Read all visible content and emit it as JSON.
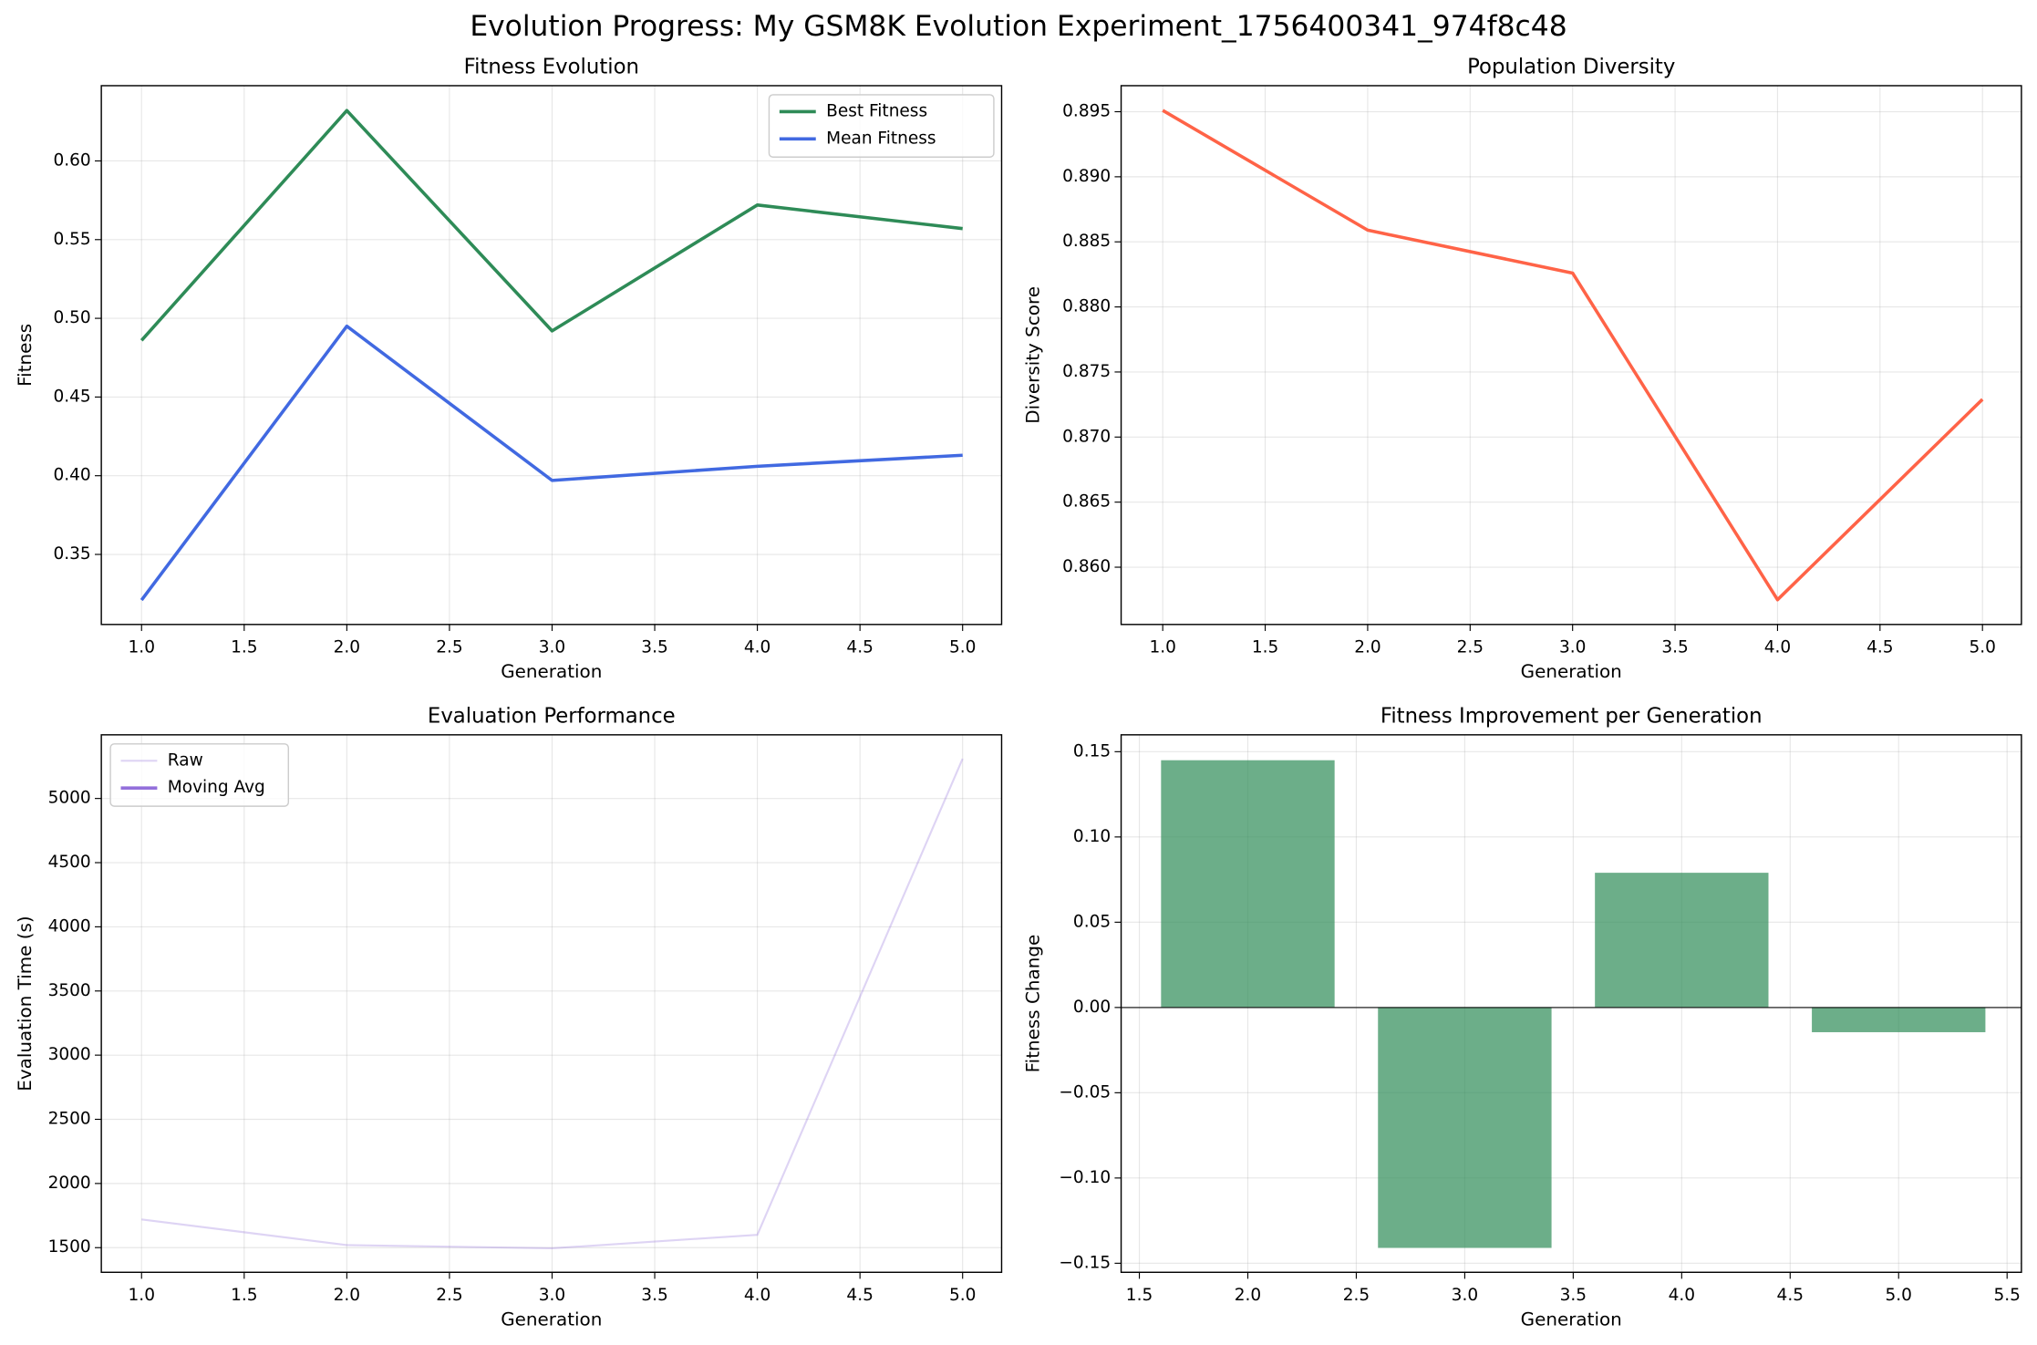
{
  "title": "Evolution Progress: My GSM8K Evolution Experiment_1756400341_974f8c48",
  "chart_data": [
    {
      "type": "line",
      "title": "Fitness Evolution",
      "x_label": "Generation",
      "y_label": "Fitness",
      "x": [
        1,
        2,
        3,
        4,
        5
      ],
      "series": [
        {
          "name": "Best Fitness",
          "color": "#2e8b57",
          "values": [
            0.486,
            0.632,
            0.492,
            0.572,
            0.557
          ]
        },
        {
          "name": "Mean Fitness",
          "color": "#4169e1",
          "values": [
            0.321,
            0.495,
            0.397,
            0.406,
            0.413
          ]
        }
      ],
      "xlim": [
        0.804,
        5.19
      ],
      "xticks": [
        {
          "value": 1,
          "label": "1.0"
        },
        1.5,
        {
          "value": 2,
          "label": "2.0"
        },
        2.5,
        {
          "value": 3,
          "label": "3.0"
        },
        3.5,
        {
          "value": 4,
          "label": "4.0"
        },
        4.5,
        {
          "value": 5,
          "label": "5.0"
        }
      ],
      "ylim": [
        0.3055,
        0.6478
      ],
      "yticks": [
        0.35,
        {
          "value": 0.4,
          "label": "0.40"
        },
        0.45,
        {
          "value": 0.5,
          "label": "0.50"
        },
        0.55,
        {
          "value": 0.6,
          "label": "0.60"
        }
      ],
      "grid": true,
      "legend": "upper right"
    },
    {
      "type": "line",
      "title": "Population Diversity",
      "x_label": "Generation",
      "y_label": "Diversity Score",
      "x": [
        1,
        2,
        3,
        4,
        5
      ],
      "series": [
        {
          "color": "#ff6347",
          "values": [
            0.8951,
            0.8859,
            0.8826,
            0.8575,
            0.8729
          ]
        }
      ],
      "xlim": [
        0.797,
        5.19
      ],
      "xticks": [
        {
          "value": 1,
          "label": "1.0"
        },
        1.5,
        {
          "value": 2,
          "label": "2.0"
        },
        2.5,
        {
          "value": 3,
          "label": "3.0"
        },
        3.5,
        {
          "value": 4,
          "label": "4.0"
        },
        4.5,
        {
          "value": 5,
          "label": "5.0"
        }
      ],
      "ylim": [
        0.8556,
        0.897
      ],
      "yticks": [
        {
          "value": 0.86,
          "label": "0.860"
        },
        0.865,
        {
          "value": 0.87,
          "label": "0.870"
        },
        0.875,
        {
          "value": 0.88,
          "label": "0.880"
        },
        0.885,
        {
          "value": 0.89,
          "label": "0.890"
        },
        0.895
      ],
      "grid": true
    },
    {
      "type": "line",
      "title": "Evaluation Performance",
      "x_label": "Generation",
      "y_label": "Evaluation Time (s)",
      "x": [
        1,
        2,
        3,
        4,
        5
      ],
      "series": [
        {
          "name": "Raw",
          "color": "#9370db",
          "alpha": 0.3,
          "line_width": 1.5,
          "values": [
            1720,
            1520,
            1495,
            1600,
            5310
          ]
        },
        {
          "name": "Moving Avg",
          "color": "#9370db",
          "values": [
            null,
            null,
            null,
            null,
            null
          ]
        }
      ],
      "xlim": [
        0.804,
        5.19
      ],
      "xticks": [
        {
          "value": 1,
          "label": "1.0"
        },
        1.5,
        {
          "value": 2,
          "label": "2.0"
        },
        2.5,
        {
          "value": 3,
          "label": "3.0"
        },
        3.5,
        {
          "value": 4,
          "label": "4.0"
        },
        4.5,
        {
          "value": 5,
          "label": "5.0"
        }
      ],
      "ylim": [
        1308,
        5496
      ],
      "yticks": [
        1500,
        2000,
        2500,
        3000,
        3500,
        4000,
        4500,
        5000
      ],
      "grid": true,
      "legend": "upper left"
    },
    {
      "type": "bar",
      "title": "Fitness Improvement per Generation",
      "x_label": "Generation",
      "y_label": "Fitness Change",
      "x": [
        2,
        3,
        4,
        5
      ],
      "values": [
        0.145,
        -0.141,
        0.079,
        -0.0145
      ],
      "color": "#2e8b57",
      "alpha": 0.7,
      "xlim": [
        1.416,
        5.566
      ],
      "xticks": [
        1.5,
        {
          "value": 2,
          "label": "2.0"
        },
        2.5,
        {
          "value": 3,
          "label": "3.0"
        },
        3.5,
        {
          "value": 4,
          "label": "4.0"
        },
        4.5,
        {
          "value": 5,
          "label": "5.0"
        },
        5.5
      ],
      "ylim": [
        -0.1553,
        0.1599
      ],
      "yticks": [
        {
          "value": -0.15,
          "label": "−0.15"
        },
        {
          "value": -0.1,
          "label": "−0.10"
        },
        {
          "value": -0.05,
          "label": "−0.05"
        },
        {
          "value": 0,
          "label": "0.00"
        },
        0.05,
        {
          "value": 0.1,
          "label": "0.10"
        },
        0.15
      ],
      "grid": true
    }
  ]
}
